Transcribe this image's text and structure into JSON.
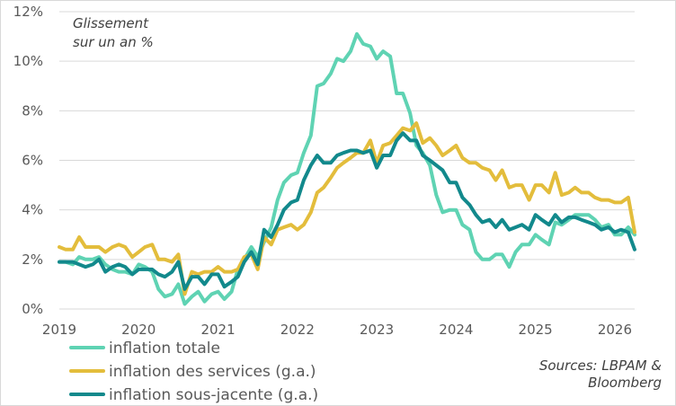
{
  "chart_data": {
    "type": "line",
    "annotation": [
      "Glissement",
      "sur un an %"
    ],
    "source": [
      "Sources: LBPAM &",
      "Bloomberg"
    ],
    "ylim": [
      0,
      12
    ],
    "yticks": [
      0,
      2,
      4,
      6,
      8,
      10,
      12
    ],
    "ytick_labels": [
      "0%",
      "2%",
      "4%",
      "6%",
      "8%",
      "10%",
      "12%"
    ],
    "xlim": [
      2019.0,
      2026.25
    ],
    "xticks": [
      2019,
      2020,
      2021,
      2022,
      2023,
      2024,
      2025,
      2026
    ],
    "xtick_labels": [
      "2019",
      "2020",
      "2021",
      "2022",
      "2023",
      "2024",
      "2025",
      "2026"
    ],
    "grid": true,
    "legend_position": "bottom-left",
    "series": [
      {
        "name": "inflation totale",
        "color": "#5fd3b3",
        "points": [
          [
            2019.0,
            1.9
          ],
          [
            2019.08,
            1.9
          ],
          [
            2019.17,
            1.8
          ],
          [
            2019.25,
            2.1
          ],
          [
            2019.33,
            2.0
          ],
          [
            2019.42,
            2.0
          ],
          [
            2019.5,
            2.1
          ],
          [
            2019.58,
            1.8
          ],
          [
            2019.67,
            1.6
          ],
          [
            2019.75,
            1.5
          ],
          [
            2019.83,
            1.5
          ],
          [
            2019.92,
            1.4
          ],
          [
            2020.0,
            1.8
          ],
          [
            2020.08,
            1.7
          ],
          [
            2020.17,
            1.5
          ],
          [
            2020.25,
            0.8
          ],
          [
            2020.33,
            0.5
          ],
          [
            2020.42,
            0.6
          ],
          [
            2020.5,
            1.0
          ],
          [
            2020.58,
            0.2
          ],
          [
            2020.67,
            0.5
          ],
          [
            2020.75,
            0.7
          ],
          [
            2020.83,
            0.3
          ],
          [
            2020.92,
            0.6
          ],
          [
            2021.0,
            0.7
          ],
          [
            2021.08,
            0.4
          ],
          [
            2021.17,
            0.7
          ],
          [
            2021.25,
            1.6
          ],
          [
            2021.33,
            2.0
          ],
          [
            2021.42,
            2.5
          ],
          [
            2021.5,
            2.1
          ],
          [
            2021.58,
            2.7
          ],
          [
            2021.67,
            3.3
          ],
          [
            2021.75,
            4.4
          ],
          [
            2021.83,
            5.1
          ],
          [
            2021.92,
            5.4
          ],
          [
            2022.0,
            5.5
          ],
          [
            2022.08,
            6.3
          ],
          [
            2022.17,
            7.0
          ],
          [
            2022.25,
            9.0
          ],
          [
            2022.33,
            9.1
          ],
          [
            2022.42,
            9.5
          ],
          [
            2022.5,
            10.1
          ],
          [
            2022.58,
            10.0
          ],
          [
            2022.67,
            10.4
          ],
          [
            2022.75,
            11.1
          ],
          [
            2022.83,
            10.7
          ],
          [
            2022.92,
            10.6
          ],
          [
            2023.0,
            10.1
          ],
          [
            2023.08,
            10.4
          ],
          [
            2023.17,
            10.2
          ],
          [
            2023.25,
            8.7
          ],
          [
            2023.33,
            8.7
          ],
          [
            2023.42,
            7.9
          ],
          [
            2023.5,
            6.6
          ],
          [
            2023.58,
            6.3
          ],
          [
            2023.67,
            5.8
          ],
          [
            2023.75,
            4.6
          ],
          [
            2023.83,
            3.9
          ],
          [
            2023.92,
            4.0
          ],
          [
            2024.0,
            4.0
          ],
          [
            2024.08,
            3.4
          ],
          [
            2024.17,
            3.2
          ],
          [
            2024.25,
            2.3
          ],
          [
            2024.33,
            2.0
          ],
          [
            2024.42,
            2.0
          ],
          [
            2024.5,
            2.2
          ],
          [
            2024.58,
            2.2
          ],
          [
            2024.67,
            1.7
          ],
          [
            2024.75,
            2.3
          ],
          [
            2024.83,
            2.6
          ],
          [
            2024.92,
            2.6
          ],
          [
            2025.0,
            3.0
          ],
          [
            2025.08,
            2.8
          ],
          [
            2025.17,
            2.6
          ],
          [
            2025.25,
            3.5
          ],
          [
            2025.33,
            3.4
          ],
          [
            2025.42,
            3.6
          ],
          [
            2025.5,
            3.8
          ],
          [
            2025.58,
            3.8
          ],
          [
            2025.67,
            3.8
          ],
          [
            2025.75,
            3.6
          ],
          [
            2025.83,
            3.3
          ],
          [
            2025.92,
            3.4
          ],
          [
            2026.0,
            3.0
          ],
          [
            2026.08,
            3.0
          ],
          [
            2026.17,
            3.3
          ],
          [
            2026.25,
            3.0
          ]
        ]
      },
      {
        "name": "inflation des services (g.a.)",
        "color": "#e3bd3c",
        "points": [
          [
            2019.0,
            2.5
          ],
          [
            2019.08,
            2.4
          ],
          [
            2019.17,
            2.4
          ],
          [
            2019.25,
            2.9
          ],
          [
            2019.33,
            2.5
          ],
          [
            2019.42,
            2.5
          ],
          [
            2019.5,
            2.5
          ],
          [
            2019.58,
            2.3
          ],
          [
            2019.67,
            2.5
          ],
          [
            2019.75,
            2.6
          ],
          [
            2019.83,
            2.5
          ],
          [
            2019.92,
            2.1
          ],
          [
            2020.0,
            2.3
          ],
          [
            2020.08,
            2.5
          ],
          [
            2020.17,
            2.6
          ],
          [
            2020.25,
            2.0
          ],
          [
            2020.33,
            2.0
          ],
          [
            2020.42,
            1.9
          ],
          [
            2020.5,
            2.2
          ],
          [
            2020.58,
            0.6
          ],
          [
            2020.67,
            1.5
          ],
          [
            2020.75,
            1.4
          ],
          [
            2020.83,
            1.5
          ],
          [
            2020.92,
            1.5
          ],
          [
            2021.0,
            1.7
          ],
          [
            2021.08,
            1.5
          ],
          [
            2021.17,
            1.5
          ],
          [
            2021.25,
            1.6
          ],
          [
            2021.33,
            2.1
          ],
          [
            2021.42,
            2.2
          ],
          [
            2021.5,
            1.6
          ],
          [
            2021.58,
            2.9
          ],
          [
            2021.67,
            2.6
          ],
          [
            2021.75,
            3.2
          ],
          [
            2021.83,
            3.3
          ],
          [
            2021.92,
            3.4
          ],
          [
            2022.0,
            3.2
          ],
          [
            2022.08,
            3.4
          ],
          [
            2022.17,
            3.9
          ],
          [
            2022.25,
            4.7
          ],
          [
            2022.33,
            4.9
          ],
          [
            2022.42,
            5.3
          ],
          [
            2022.5,
            5.7
          ],
          [
            2022.58,
            5.9
          ],
          [
            2022.67,
            6.1
          ],
          [
            2022.75,
            6.3
          ],
          [
            2022.83,
            6.3
          ],
          [
            2022.92,
            6.8
          ],
          [
            2023.0,
            5.9
          ],
          [
            2023.08,
            6.6
          ],
          [
            2023.17,
            6.7
          ],
          [
            2023.25,
            7.0
          ],
          [
            2023.33,
            7.3
          ],
          [
            2023.42,
            7.2
          ],
          [
            2023.5,
            7.5
          ],
          [
            2023.58,
            6.7
          ],
          [
            2023.67,
            6.9
          ],
          [
            2023.75,
            6.6
          ],
          [
            2023.83,
            6.2
          ],
          [
            2023.92,
            6.4
          ],
          [
            2024.0,
            6.6
          ],
          [
            2024.08,
            6.1
          ],
          [
            2024.17,
            5.9
          ],
          [
            2024.25,
            5.9
          ],
          [
            2024.33,
            5.7
          ],
          [
            2024.42,
            5.6
          ],
          [
            2024.5,
            5.2
          ],
          [
            2024.58,
            5.6
          ],
          [
            2024.67,
            4.9
          ],
          [
            2024.75,
            5.0
          ],
          [
            2024.83,
            5.0
          ],
          [
            2024.92,
            4.4
          ],
          [
            2025.0,
            5.0
          ],
          [
            2025.08,
            5.0
          ],
          [
            2025.17,
            4.7
          ],
          [
            2025.25,
            5.5
          ],
          [
            2025.33,
            4.6
          ],
          [
            2025.42,
            4.7
          ],
          [
            2025.5,
            4.9
          ],
          [
            2025.58,
            4.7
          ],
          [
            2025.67,
            4.7
          ],
          [
            2025.75,
            4.5
          ],
          [
            2025.83,
            4.4
          ],
          [
            2025.92,
            4.4
          ],
          [
            2026.0,
            4.3
          ],
          [
            2026.08,
            4.3
          ],
          [
            2026.17,
            4.5
          ],
          [
            2026.25,
            3.1
          ]
        ]
      },
      {
        "name": "inflation sous-jacente (g.a.)",
        "color": "#12898c",
        "points": [
          [
            2019.0,
            1.9
          ],
          [
            2019.08,
            1.9
          ],
          [
            2019.17,
            1.9
          ],
          [
            2019.25,
            1.8
          ],
          [
            2019.33,
            1.7
          ],
          [
            2019.42,
            1.8
          ],
          [
            2019.5,
            2.0
          ],
          [
            2019.58,
            1.5
          ],
          [
            2019.67,
            1.7
          ],
          [
            2019.75,
            1.8
          ],
          [
            2019.83,
            1.7
          ],
          [
            2019.92,
            1.4
          ],
          [
            2020.0,
            1.6
          ],
          [
            2020.08,
            1.6
          ],
          [
            2020.17,
            1.6
          ],
          [
            2020.25,
            1.4
          ],
          [
            2020.33,
            1.3
          ],
          [
            2020.42,
            1.5
          ],
          [
            2020.5,
            1.9
          ],
          [
            2020.58,
            0.8
          ],
          [
            2020.67,
            1.3
          ],
          [
            2020.75,
            1.3
          ],
          [
            2020.83,
            1.0
          ],
          [
            2020.92,
            1.4
          ],
          [
            2021.0,
            1.4
          ],
          [
            2021.08,
            0.9
          ],
          [
            2021.17,
            1.1
          ],
          [
            2021.25,
            1.3
          ],
          [
            2021.33,
            1.9
          ],
          [
            2021.42,
            2.3
          ],
          [
            2021.5,
            1.8
          ],
          [
            2021.58,
            3.2
          ],
          [
            2021.67,
            2.9
          ],
          [
            2021.75,
            3.4
          ],
          [
            2021.83,
            4.0
          ],
          [
            2021.92,
            4.3
          ],
          [
            2022.0,
            4.4
          ],
          [
            2022.08,
            5.2
          ],
          [
            2022.17,
            5.8
          ],
          [
            2022.25,
            6.2
          ],
          [
            2022.33,
            5.9
          ],
          [
            2022.42,
            5.9
          ],
          [
            2022.5,
            6.2
          ],
          [
            2022.58,
            6.3
          ],
          [
            2022.67,
            6.4
          ],
          [
            2022.75,
            6.4
          ],
          [
            2022.83,
            6.3
          ],
          [
            2022.92,
            6.4
          ],
          [
            2023.0,
            5.7
          ],
          [
            2023.08,
            6.2
          ],
          [
            2023.17,
            6.2
          ],
          [
            2023.25,
            6.8
          ],
          [
            2023.33,
            7.1
          ],
          [
            2023.42,
            6.8
          ],
          [
            2023.5,
            6.8
          ],
          [
            2023.58,
            6.2
          ],
          [
            2023.67,
            6.0
          ],
          [
            2023.75,
            5.8
          ],
          [
            2023.83,
            5.6
          ],
          [
            2023.92,
            5.1
          ],
          [
            2024.0,
            5.1
          ],
          [
            2024.08,
            4.5
          ],
          [
            2024.17,
            4.2
          ],
          [
            2024.25,
            3.8
          ],
          [
            2024.33,
            3.5
          ],
          [
            2024.42,
            3.6
          ],
          [
            2024.5,
            3.3
          ],
          [
            2024.58,
            3.6
          ],
          [
            2024.67,
            3.2
          ],
          [
            2024.75,
            3.3
          ],
          [
            2024.83,
            3.4
          ],
          [
            2024.92,
            3.2
          ],
          [
            2025.0,
            3.8
          ],
          [
            2025.08,
            3.6
          ],
          [
            2025.17,
            3.4
          ],
          [
            2025.25,
            3.8
          ],
          [
            2025.33,
            3.5
          ],
          [
            2025.42,
            3.7
          ],
          [
            2025.5,
            3.7
          ],
          [
            2025.58,
            3.6
          ],
          [
            2025.67,
            3.5
          ],
          [
            2025.75,
            3.4
          ],
          [
            2025.83,
            3.2
          ],
          [
            2025.92,
            3.3
          ],
          [
            2026.0,
            3.1
          ],
          [
            2026.08,
            3.2
          ],
          [
            2026.17,
            3.1
          ],
          [
            2026.25,
            2.4
          ]
        ]
      }
    ]
  }
}
